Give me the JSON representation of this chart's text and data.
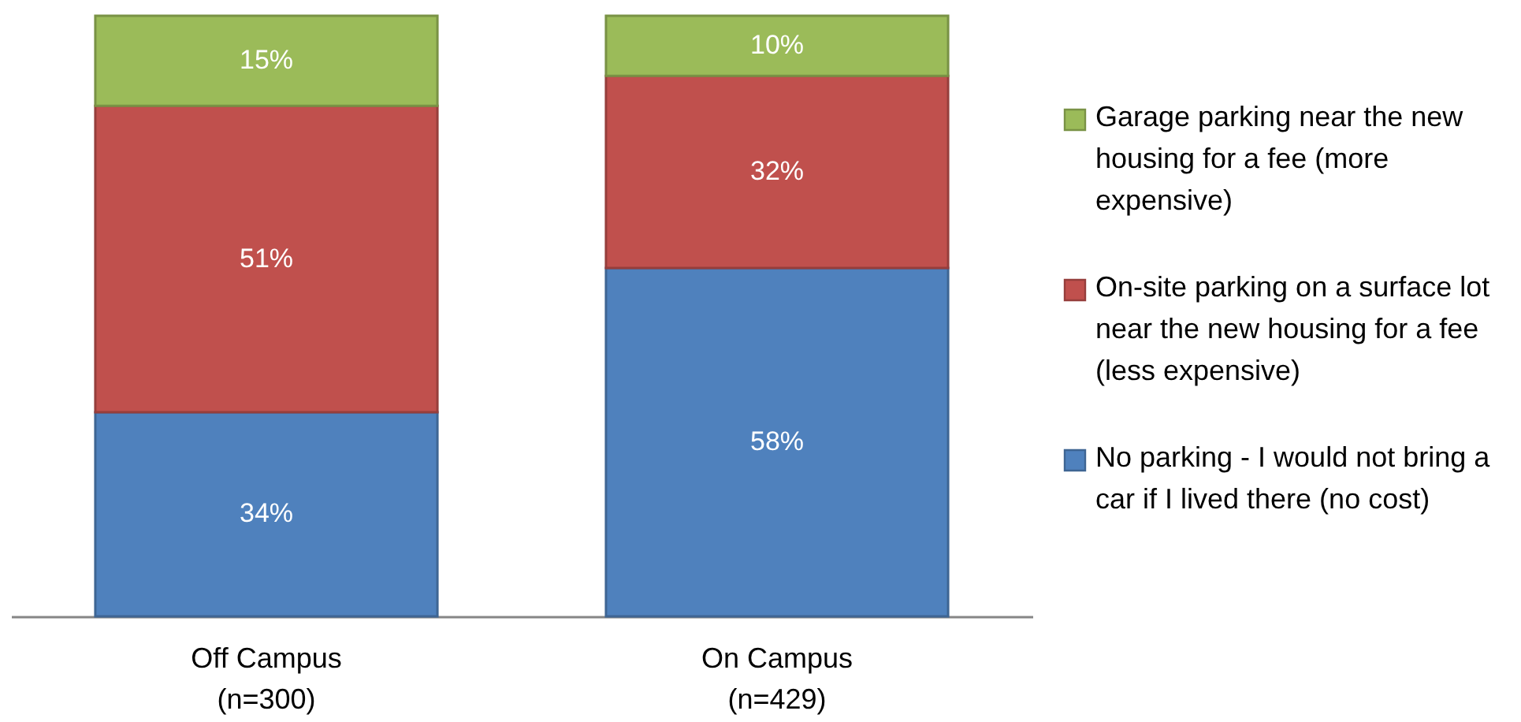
{
  "chart_data": {
    "type": "bar",
    "stacked": true,
    "categories": [
      "Off Campus\n(n=300)",
      "On Campus\n(n=429)"
    ],
    "series": [
      {
        "name": "No parking - I would not bring a car if I lived there (no cost)",
        "color": "#4f81bd",
        "values": [
          34,
          58
        ],
        "value_labels": [
          "34%",
          "58%"
        ]
      },
      {
        "name": "On-site parking on a surface lot near the new housing for a fee (less expensive)",
        "color": "#c0504d",
        "values": [
          51,
          32
        ],
        "value_labels": [
          "51%",
          "32%"
        ]
      },
      {
        "name": "Garage parking near the new housing for a fee (more expensive)",
        "color": "#9bbb59",
        "values": [
          15,
          10
        ],
        "value_labels": [
          "15%",
          "10%"
        ]
      }
    ],
    "ylim": [
      0,
      100
    ],
    "tick_labels": "x",
    "legend": "right"
  }
}
